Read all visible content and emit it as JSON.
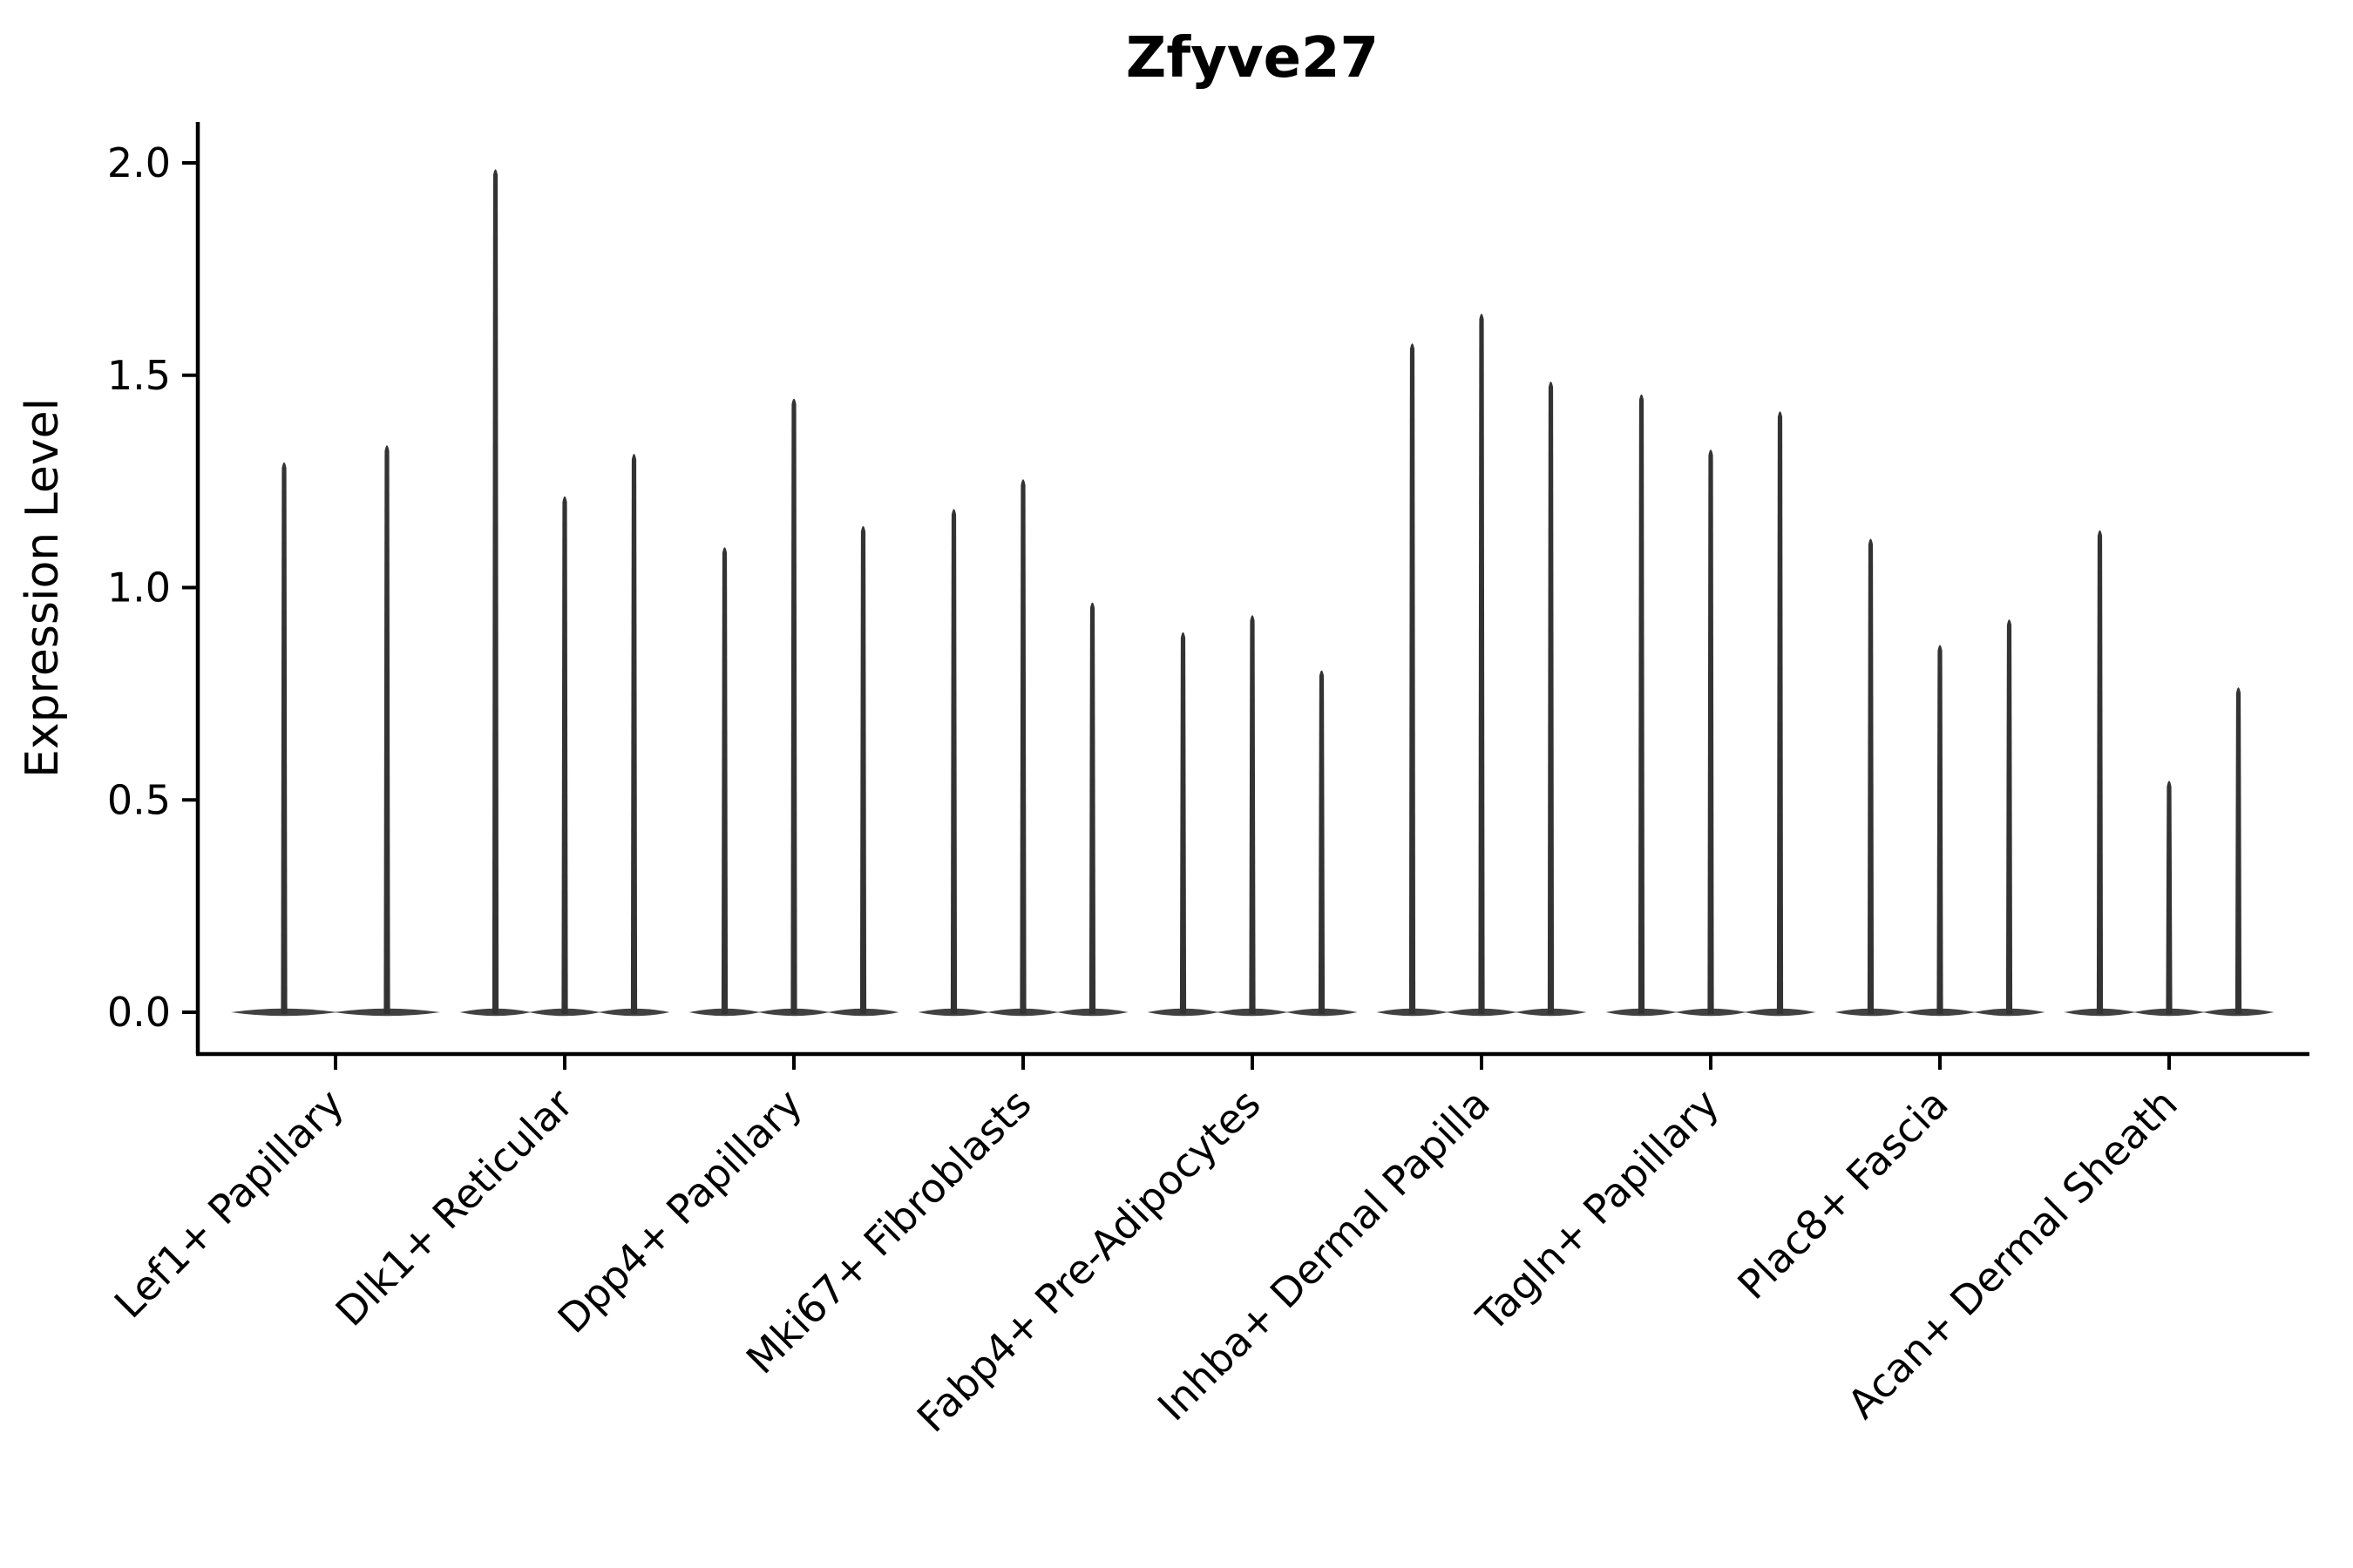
{
  "title": "Zfyve27",
  "chart_data": {
    "type": "violin",
    "title": "Zfyve27",
    "xlabel": "",
    "ylabel": "Expression Level",
    "ylim": [
      -0.1,
      2.1
    ],
    "yticks": [
      0.0,
      0.5,
      1.0,
      1.5,
      2.0
    ],
    "ytick_labels": [
      "0.0",
      "0.5",
      "1.0",
      "1.5",
      "2.0"
    ],
    "grid": false,
    "legend": "none",
    "violin_color": "#333333",
    "orientation": "vertical",
    "x_tick_rotation_deg": 45,
    "distribution_note": "Each violin is extremely zero-inflated: a wide flat body at expression 0 with a thin spike tapering up to the maximum value.",
    "categories": [
      "Lef1+ Papillary",
      "Dlk1+ Reticular",
      "Dpp4+ Papillary",
      "Mki67+ Fibroblasts",
      "Fabp4+ Pre-Adipocytes",
      "Inhba+ Dermal Papilla",
      "Tagln+ Papillary",
      "Plac8+ Fascia",
      "Acan+ Dermal Sheath"
    ],
    "violins_per_category": [
      2,
      3,
      3,
      3,
      3,
      3,
      3,
      3,
      3
    ],
    "series": [
      {
        "category": "Lef1+ Papillary",
        "violin_max_values": [
          1.3,
          1.34
        ]
      },
      {
        "category": "Dlk1+ Reticular",
        "violin_max_values": [
          1.99,
          1.22,
          1.32
        ]
      },
      {
        "category": "Dpp4+ Papillary",
        "violin_max_values": [
          1.1,
          1.45,
          1.15
        ]
      },
      {
        "category": "Mki67+ Fibroblasts",
        "violin_max_values": [
          1.19,
          1.26,
          0.97
        ]
      },
      {
        "category": "Fabp4+ Pre-Adipocytes",
        "violin_max_values": [
          0.9,
          0.94,
          0.81
        ]
      },
      {
        "category": "Inhba+ Dermal Papilla",
        "violin_max_values": [
          1.58,
          1.65,
          1.49
        ]
      },
      {
        "category": "Tagln+ Papillary",
        "violin_max_values": [
          1.46,
          1.33,
          1.42
        ]
      },
      {
        "category": "Plac8+ Fascia",
        "violin_max_values": [
          1.12,
          0.87,
          0.93
        ]
      },
      {
        "category": "Acan+ Dermal Sheath",
        "violin_max_values": [
          1.14,
          0.55,
          0.77
        ]
      }
    ]
  }
}
